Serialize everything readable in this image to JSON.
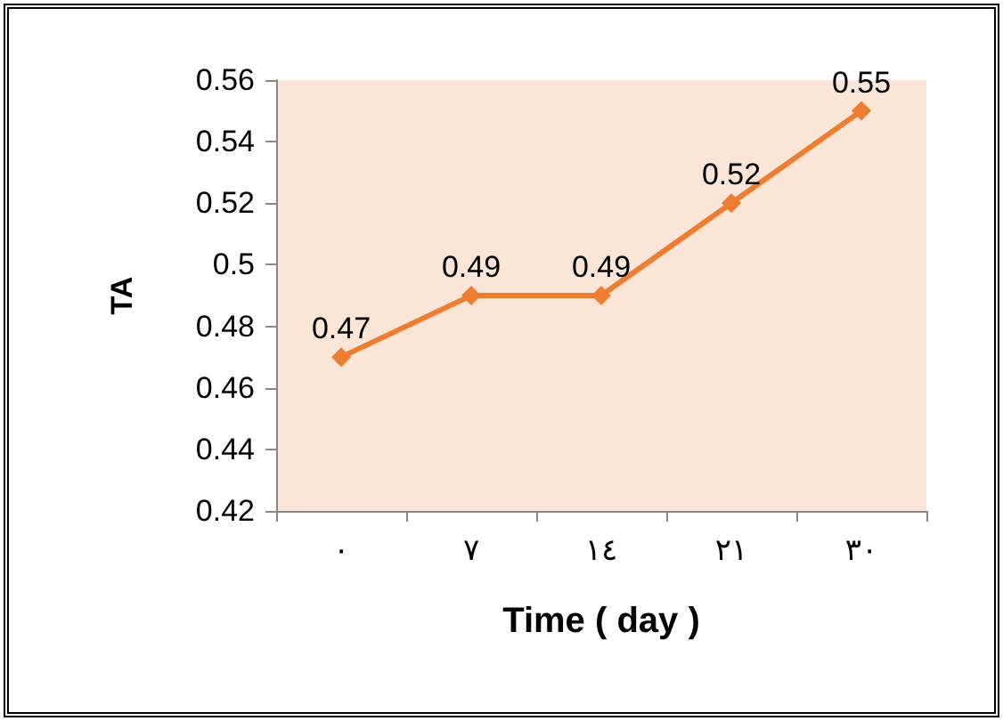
{
  "chart_data": {
    "type": "line",
    "xlabel": "Time ( day )",
    "ylabel": "TA",
    "categories": [
      "٠",
      "٧",
      "١٤",
      "٢١",
      "٣٠"
    ],
    "series": [
      {
        "color": "#ed7d31",
        "values": [
          0.47,
          0.49,
          0.49,
          0.52,
          0.55
        ]
      }
    ],
    "ylim": [
      0.42,
      0.56
    ],
    "yticks": [
      0.42,
      0.44,
      0.46,
      0.48,
      0.5,
      0.52,
      0.54,
      0.56
    ],
    "grid": false,
    "marker": "diamond",
    "line_style": "solid",
    "data_labels": true
  }
}
